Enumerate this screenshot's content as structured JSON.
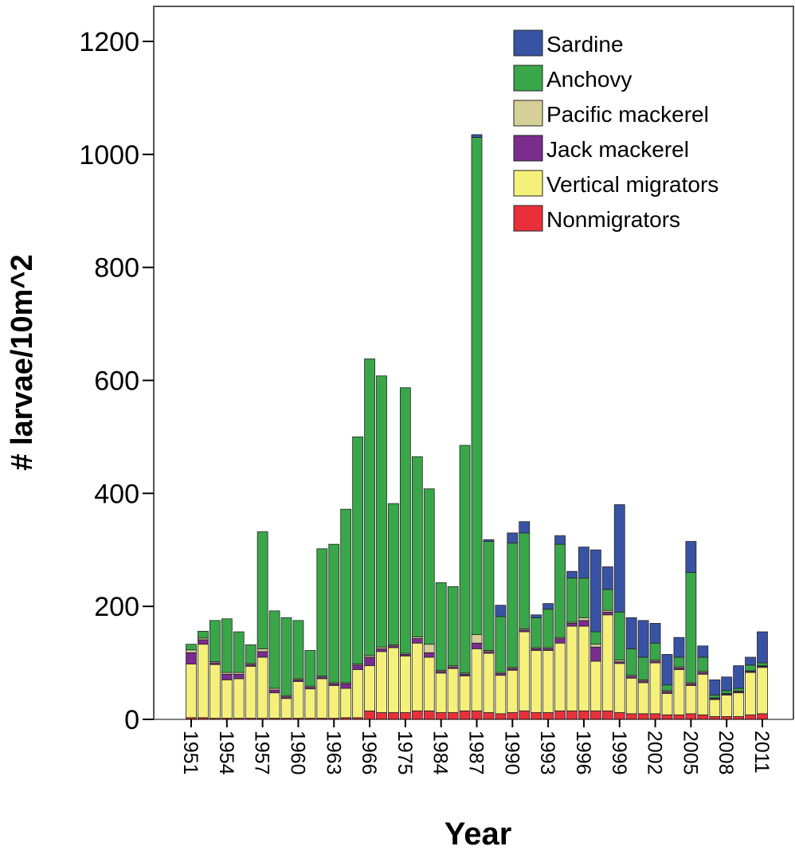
{
  "chart_data": {
    "type": "stacked-bar",
    "y_label": "# larvae/10m^2",
    "x_label": "Year",
    "categories": [
      "1951",
      null,
      null,
      "1954",
      null,
      null,
      "1957",
      null,
      null,
      "1960",
      null,
      null,
      "1963",
      null,
      null,
      "1966",
      null,
      null,
      "1975",
      null,
      null,
      "1984",
      null,
      null,
      "1987",
      null,
      null,
      "1990",
      null,
      null,
      "1993",
      null,
      null,
      "1996",
      null,
      null,
      "1999",
      null,
      null,
      "2002",
      null,
      null,
      "2005",
      null,
      null,
      "2008",
      null,
      null,
      "2011"
    ],
    "series": [
      {
        "name": "Nonmigrators",
        "color": "#e8303a",
        "values": [
          3,
          3,
          2,
          2,
          2,
          2,
          2,
          2,
          2,
          2,
          2,
          2,
          2,
          3,
          3,
          15,
          12,
          12,
          12,
          15,
          15,
          12,
          12,
          15,
          15,
          12,
          10,
          12,
          15,
          12,
          12,
          15,
          15,
          15,
          15,
          15,
          12,
          10,
          10,
          10,
          8,
          8,
          10,
          8,
          5,
          5,
          5,
          8,
          10
        ]
      },
      {
        "name": "Vertical migrators",
        "color": "#f5f07a",
        "values": [
          95,
          130,
          95,
          68,
          70,
          92,
          108,
          45,
          35,
          65,
          52,
          70,
          58,
          52,
          85,
          80,
          108,
          115,
          100,
          120,
          95,
          70,
          78,
          62,
          110,
          105,
          68,
          75,
          140,
          110,
          110,
          120,
          150,
          150,
          88,
          170,
          87,
          63,
          55,
          90,
          38,
          80,
          50,
          72,
          30,
          38,
          42,
          75,
          82
        ]
      },
      {
        "name": "Jack mackerel",
        "color": "#7b2d8e",
        "values": [
          20,
          8,
          3,
          10,
          8,
          3,
          10,
          5,
          3,
          3,
          3,
          3,
          3,
          8,
          8,
          15,
          5,
          3,
          3,
          8,
          8,
          3,
          3,
          3,
          10,
          3,
          3,
          3,
          3,
          3,
          3,
          8,
          5,
          10,
          25,
          5,
          3,
          3,
          3,
          3,
          3,
          3,
          3,
          3,
          2,
          2,
          2,
          2,
          2
        ]
      },
      {
        "name": "Pacific mackerel",
        "color": "#d6cf98",
        "values": [
          5,
          3,
          2,
          3,
          3,
          2,
          5,
          3,
          2,
          2,
          2,
          2,
          2,
          2,
          2,
          3,
          3,
          2,
          2,
          3,
          15,
          2,
          2,
          2,
          15,
          2,
          2,
          2,
          2,
          2,
          2,
          2,
          2,
          5,
          5,
          3,
          3,
          2,
          2,
          2,
          2,
          2,
          2,
          2,
          1,
          1,
          1,
          1,
          1
        ]
      },
      {
        "name": "Anchovy",
        "color": "#3aa64a",
        "values": [
          10,
          12,
          73,
          95,
          72,
          33,
          207,
          137,
          138,
          103,
          63,
          225,
          245,
          307,
          402,
          525,
          480,
          250,
          470,
          319,
          275,
          155,
          140,
          403,
          880,
          193,
          99,
          220,
          170,
          53,
          68,
          165,
          78,
          70,
          22,
          37,
          85,
          47,
          40,
          30,
          10,
          17,
          195,
          25,
          5,
          5,
          5,
          10,
          5
        ]
      },
      {
        "name": "Sardine",
        "color": "#3953a4",
        "values": [
          0,
          0,
          0,
          0,
          0,
          0,
          0,
          0,
          0,
          0,
          0,
          0,
          0,
          0,
          0,
          0,
          0,
          0,
          0,
          0,
          0,
          0,
          0,
          0,
          5,
          3,
          20,
          18,
          20,
          5,
          10,
          15,
          12,
          55,
          145,
          40,
          190,
          55,
          65,
          35,
          54,
          35,
          55,
          20,
          27,
          24,
          40,
          14,
          55
        ]
      }
    ],
    "ylim": [
      0,
      1262
    ],
    "yticks": [
      0,
      200,
      400,
      600,
      800,
      1000,
      1200
    ]
  }
}
